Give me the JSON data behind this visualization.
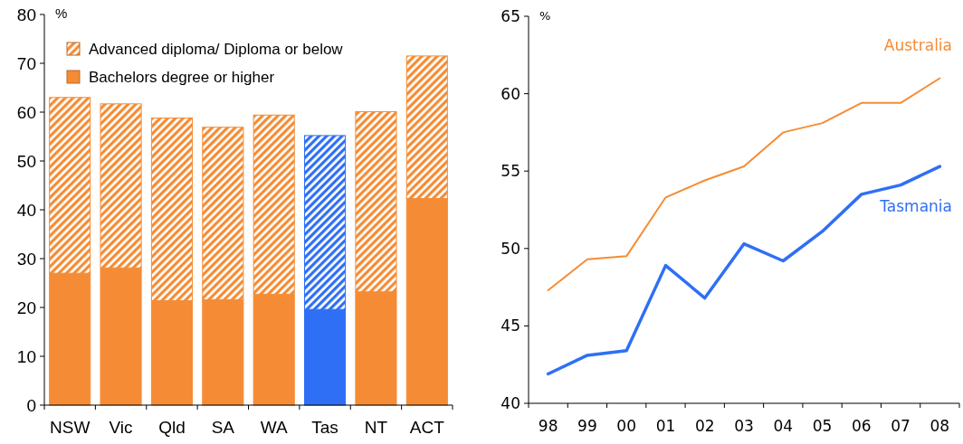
{
  "chart_data": [
    {
      "type": "bar",
      "stacked": true,
      "ylabel": "%",
      "categories": [
        "NSW",
        "Vic",
        "Qld",
        "SA",
        "WA",
        "Tas",
        "NT",
        "ACT"
      ],
      "ylim": [
        0,
        80
      ],
      "yticks": [
        0,
        10,
        20,
        30,
        40,
        50,
        60,
        70,
        80
      ],
      "legend": "top left",
      "series": [
        {
          "name": "Bachelors degree or higher",
          "color": "#f58c35",
          "colors": [
            "#f58c35",
            "#f58c35",
            "#f58c35",
            "#f58c35",
            "#f58c35",
            "#2f6ff5",
            "#f58c35",
            "#f58c35"
          ],
          "values": [
            27.0,
            28.1,
            21.4,
            21.6,
            22.7,
            19.6,
            23.2,
            42.3
          ]
        },
        {
          "name": "Advanced diploma/ Diploma or below",
          "color": "#f58c35",
          "colors": [
            "#f58c35",
            "#f58c35",
            "#f58c35",
            "#f58c35",
            "#f58c35",
            "#2f6ff5",
            "#f58c35",
            "#f58c35"
          ],
          "values": [
            36.0,
            33.6,
            37.4,
            35.3,
            36.7,
            35.6,
            36.9,
            29.2
          ]
        }
      ]
    },
    {
      "type": "line",
      "ylabel": "%",
      "categories": [
        "98",
        "99",
        "00",
        "01",
        "02",
        "03",
        "04",
        "05",
        "06",
        "07",
        "08"
      ],
      "ylim": [
        40,
        65
      ],
      "yticks": [
        40,
        45,
        50,
        55,
        60,
        65
      ],
      "series": [
        {
          "name": "Australia",
          "color": "#f58c35",
          "values": [
            47.3,
            49.3,
            49.5,
            53.3,
            54.4,
            55.3,
            57.5,
            58.1,
            59.4,
            59.4,
            61.0
          ]
        },
        {
          "name": "Tasmania",
          "color": "#2f6ff5",
          "values": [
            41.9,
            43.1,
            43.4,
            48.9,
            46.8,
            50.3,
            49.2,
            51.1,
            53.5,
            54.1,
            55.3
          ]
        }
      ]
    }
  ]
}
